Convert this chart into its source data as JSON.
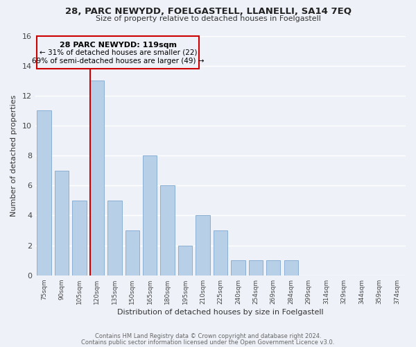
{
  "title": "28, PARC NEWYDD, FOELGASTELL, LLANELLI, SA14 7EQ",
  "subtitle": "Size of property relative to detached houses in Foelgastell",
  "xlabel": "Distribution of detached houses by size in Foelgastell",
  "ylabel": "Number of detached properties",
  "footer_line1": "Contains HM Land Registry data © Crown copyright and database right 2024.",
  "footer_line2": "Contains public sector information licensed under the Open Government Licence v3.0.",
  "bar_labels": [
    "75sqm",
    "90sqm",
    "105sqm",
    "120sqm",
    "135sqm",
    "150sqm",
    "165sqm",
    "180sqm",
    "195sqm",
    "210sqm",
    "225sqm",
    "240sqm",
    "254sqm",
    "269sqm",
    "284sqm",
    "299sqm",
    "314sqm",
    "329sqm",
    "344sqm",
    "359sqm",
    "374sqm"
  ],
  "bar_values": [
    11,
    7,
    5,
    13,
    5,
    3,
    8,
    6,
    2,
    4,
    3,
    1,
    1,
    1,
    1,
    0,
    0,
    0,
    0,
    0,
    0
  ],
  "bar_color": "#b8cfe8",
  "bar_edge_color": "#8aafd4",
  "marker_label": "28 PARC NEWYDD: 119sqm",
  "annotation_line1": "← 31% of detached houses are smaller (22)",
  "annotation_line2": "69% of semi-detached houses are larger (49) →",
  "marker_color": "#cc0000",
  "ylim": [
    0,
    16
  ],
  "yticks": [
    0,
    2,
    4,
    6,
    8,
    10,
    12,
    14,
    16
  ],
  "background_color": "#eef2f8",
  "grid_color": "#ffffff",
  "box_color": "#cc0000",
  "marker_bar_index": 3
}
